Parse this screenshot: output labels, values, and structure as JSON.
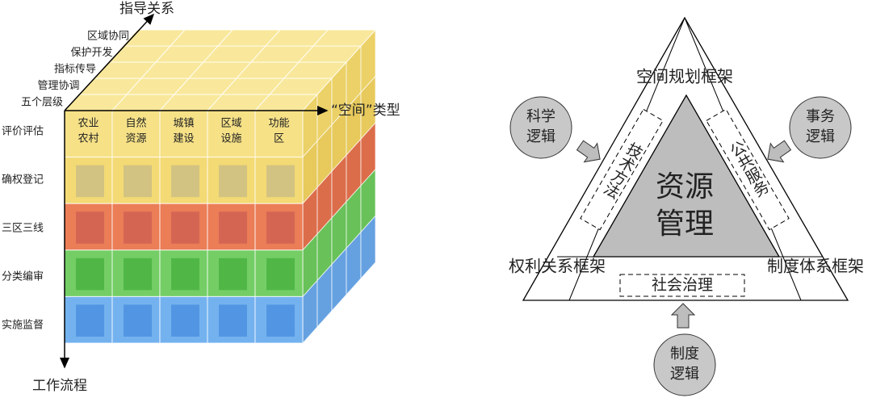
{
  "cube": {
    "axis_depth": "指导关系",
    "axis_x": "“空间”类型",
    "axis_y": "工作流程",
    "depth_labels": [
      "区域协同",
      "保护开发",
      "指标传导",
      "管理协调",
      "五个层级"
    ],
    "columns": [
      [
        "农业",
        "农村"
      ],
      [
        "自然",
        "资源"
      ],
      [
        "城镇",
        "建设"
      ],
      [
        "区域",
        "设施"
      ],
      [
        "功能",
        "区"
      ]
    ],
    "rows": [
      "评价评估",
      "确权登记",
      "三区三线",
      "分类编审",
      "实施监督"
    ]
  },
  "triangle": {
    "top_label": "空间规划框架",
    "left_label": "权利关系框架",
    "right_label": "制度体系框架",
    "center": [
      "资源",
      "管理"
    ],
    "left_band": "技术方法",
    "right_band": "公共服务",
    "bottom_band": "社会治理",
    "left_circle": [
      "科学",
      "逻辑"
    ],
    "right_circle": [
      "事务",
      "逻辑"
    ],
    "bottom_circle": [
      "制度",
      "逻辑"
    ]
  }
}
